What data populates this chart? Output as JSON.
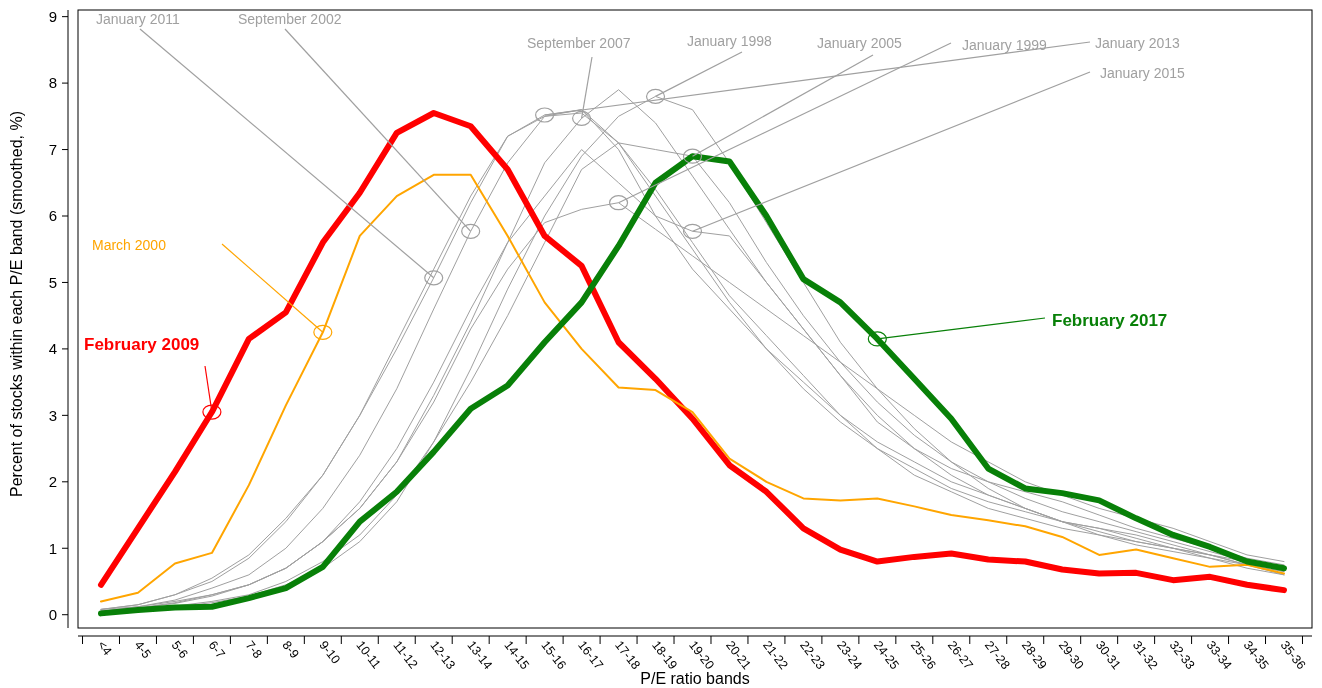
{
  "chart_data": {
    "type": "line",
    "xlabel": "P/E ratio bands",
    "ylabel": "Percent of stocks within each P/E band (smoothed, %)",
    "categories": [
      "<4",
      "4-5",
      "5-6",
      "6-7",
      "7-8",
      "8-9",
      "9-10",
      "10-11",
      "11-12",
      "12-13",
      "13-14",
      "14-15",
      "15-16",
      "16-17",
      "17-18",
      "18-19",
      "19-20",
      "20-21",
      "21-22",
      "22-23",
      "23-24",
      "24-25",
      "25-26",
      "26-27",
      "27-28",
      "28-29",
      "29-30",
      "30-31",
      "31-32",
      "32-33",
      "33-34",
      "34-35",
      "35-36"
    ],
    "ylim": [
      -0.2,
      9.1
    ],
    "yticks": [
      0,
      1,
      2,
      3,
      4,
      5,
      6,
      7,
      8,
      9
    ],
    "grid": false,
    "legend": false,
    "marker": "none",
    "line_style": "solid",
    "series": [
      {
        "name": "February 2009",
        "color": "#ff0000",
        "values": [
          0.45,
          1.3,
          2.15,
          3.05,
          4.15,
          4.55,
          5.6,
          6.35,
          7.25,
          7.55,
          7.35,
          6.7,
          5.7,
          5.25,
          4.1,
          3.55,
          2.95,
          2.25,
          1.85,
          1.3,
          0.98,
          0.8,
          0.87,
          0.92,
          0.83,
          0.8,
          0.68,
          0.62,
          0.63,
          0.52,
          0.57,
          0.45,
          0.37
        ]
      },
      {
        "name": "March 2000",
        "color": "#ffa500",
        "values": [
          0.2,
          0.33,
          0.77,
          0.93,
          1.95,
          3.15,
          4.25,
          5.7,
          6.3,
          6.62,
          6.62,
          5.7,
          4.7,
          4.0,
          3.42,
          3.38,
          3.05,
          2.35,
          2.0,
          1.75,
          1.72,
          1.75,
          1.63,
          1.5,
          1.42,
          1.33,
          1.17,
          0.9,
          0.98,
          0.85,
          0.72,
          0.75,
          0.62
        ]
      },
      {
        "name": "February 2017",
        "color": "#088008",
        "values": [
          0.02,
          0.07,
          0.11,
          0.12,
          0.25,
          0.4,
          0.72,
          1.4,
          1.85,
          2.45,
          3.1,
          3.45,
          4.1,
          4.7,
          5.55,
          6.5,
          6.9,
          6.82,
          6.0,
          5.05,
          4.7,
          4.15,
          3.55,
          2.95,
          2.2,
          1.9,
          1.83,
          1.72,
          1.45,
          1.2,
          1.02,
          0.8,
          0.7
        ]
      },
      {
        "name": "January 2011",
        "color": "#a0a0a0",
        "values": [
          0.08,
          0.15,
          0.3,
          0.55,
          0.9,
          1.45,
          2.1,
          3.0,
          4.0,
          5.07,
          6.2,
          7.2,
          7.5,
          7.6,
          7.0,
          6.0,
          5.2,
          4.6,
          4.0,
          3.5,
          3.0,
          2.6,
          2.3,
          2.0,
          1.8,
          1.6,
          1.4,
          1.3,
          1.15,
          1.0,
          0.9,
          0.75,
          0.6
        ]
      },
      {
        "name": "September 2002",
        "color": "#a0a0a0",
        "values": [
          0.05,
          0.12,
          0.22,
          0.4,
          0.6,
          1.0,
          1.6,
          2.4,
          3.4,
          4.6,
          5.77,
          6.8,
          7.5,
          7.55,
          7.1,
          6.3,
          5.5,
          4.7,
          4.0,
          3.4,
          2.9,
          2.5,
          2.1,
          1.85,
          1.6,
          1.45,
          1.3,
          1.2,
          1.1,
          1.0,
          0.85,
          0.7,
          0.6
        ]
      },
      {
        "name": "September 2007",
        "color": "#a0a0a0",
        "values": [
          0.05,
          0.1,
          0.18,
          0.3,
          0.45,
          0.7,
          1.1,
          1.6,
          2.3,
          3.3,
          4.4,
          5.6,
          6.8,
          7.47,
          7.9,
          7.4,
          6.6,
          5.8,
          5.0,
          4.3,
          3.6,
          3.0,
          2.5,
          2.1,
          1.8,
          1.6,
          1.4,
          1.3,
          1.2,
          1.05,
          0.9,
          0.75,
          0.65
        ]
      },
      {
        "name": "January 1998",
        "color": "#a0a0a0",
        "values": [
          0.05,
          0.08,
          0.12,
          0.18,
          0.28,
          0.45,
          0.7,
          1.1,
          1.7,
          2.6,
          3.7,
          4.9,
          6.0,
          6.9,
          7.5,
          7.8,
          7.6,
          6.8,
          5.9,
          5.0,
          4.1,
          3.4,
          2.8,
          2.3,
          1.9,
          1.6,
          1.4,
          1.2,
          1.05,
          0.95,
          0.85,
          0.75,
          0.65
        ]
      },
      {
        "name": "January 2005",
        "color": "#a0a0a0",
        "values": [
          0.05,
          0.08,
          0.13,
          0.2,
          0.3,
          0.5,
          0.8,
          1.2,
          1.8,
          2.6,
          3.5,
          4.5,
          5.6,
          6.7,
          7.1,
          7.0,
          6.9,
          6.2,
          5.3,
          4.5,
          3.8,
          3.2,
          2.7,
          2.3,
          2.0,
          1.75,
          1.55,
          1.4,
          1.25,
          1.1,
          0.95,
          0.8,
          0.7
        ]
      },
      {
        "name": "January 1999",
        "color": "#a0a0a0",
        "values": [
          0.08,
          0.12,
          0.2,
          0.3,
          0.45,
          0.7,
          1.1,
          1.6,
          2.3,
          3.2,
          4.3,
          5.2,
          5.9,
          6.1,
          6.2,
          5.8,
          5.4,
          5.0,
          4.6,
          4.2,
          3.8,
          3.4,
          3.0,
          2.6,
          2.3,
          2.0,
          1.8,
          1.6,
          1.45,
          1.3,
          1.1,
          0.9,
          0.8
        ]
      },
      {
        "name": "January 2013",
        "color": "#a0a0a0",
        "values": [
          0.08,
          0.15,
          0.3,
          0.5,
          0.85,
          1.4,
          2.1,
          3.0,
          4.1,
          5.2,
          6.3,
          7.2,
          7.52,
          7.6,
          7.1,
          6.4,
          5.6,
          4.8,
          4.2,
          3.6,
          3.0,
          2.5,
          2.2,
          1.9,
          1.7,
          1.55,
          1.4,
          1.25,
          1.1,
          1.0,
          0.9,
          0.8,
          0.7
        ]
      },
      {
        "name": "January 2015",
        "color": "#a0a0a0",
        "values": [
          0.06,
          0.1,
          0.17,
          0.28,
          0.45,
          0.7,
          1.1,
          1.7,
          2.5,
          3.5,
          4.6,
          5.6,
          6.3,
          7.0,
          6.5,
          6.0,
          5.77,
          5.7,
          5.0,
          4.3,
          3.6,
          2.9,
          2.5,
          2.2,
          2.0,
          1.85,
          1.7,
          1.5,
          1.3,
          1.15,
          1.0,
          0.85,
          0.75
        ]
      }
    ]
  }
}
